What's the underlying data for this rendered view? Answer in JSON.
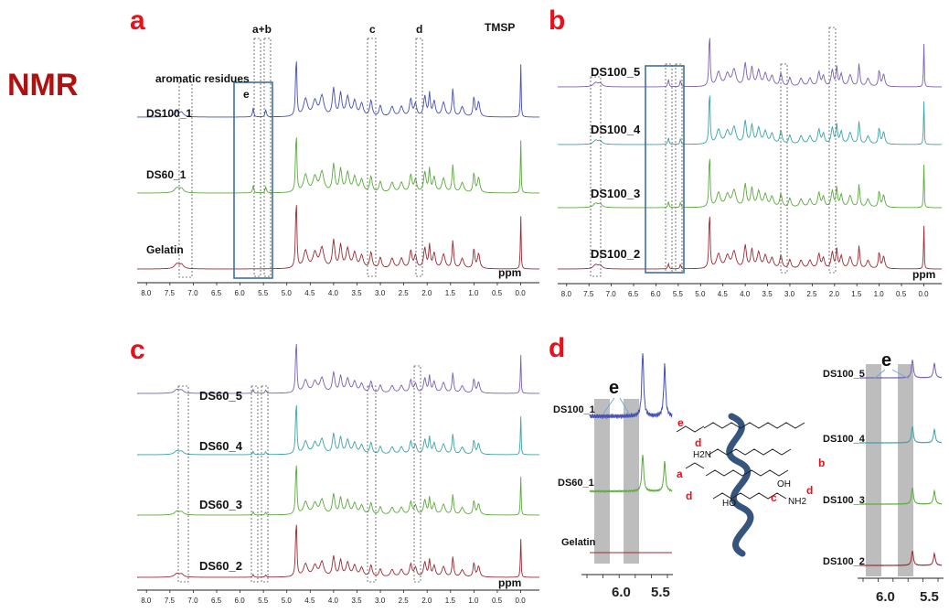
{
  "figure_title": "NMR",
  "colors": {
    "panel_letter": "#e8101a",
    "title": "#b01010",
    "purple": "#7b5fb3",
    "teal": "#3aa3a8",
    "green": "#5aaa3c",
    "red": "#9b2a33",
    "blue": "#4450b5",
    "box_blue": "#3d6fa3",
    "helix": "#35547e",
    "shade": "#bdbdbd"
  },
  "chart_data": [
    {
      "panel": "a",
      "type": "line",
      "xlabel": "ppm",
      "x_ticks": [
        "8.0",
        "7.5",
        "7.0",
        "6.5",
        "6.0",
        "5.5",
        "5.0",
        "4.5",
        "4.0",
        "3.5",
        "3.0",
        "2.5",
        "2.0",
        "1.5",
        "1.0",
        "0.5",
        "0.0"
      ],
      "xlim": [
        8.2,
        -0.4
      ],
      "series": [
        {
          "name": "DS100_1",
          "color": "blue"
        },
        {
          "name": "DS60_1",
          "color": "green"
        },
        {
          "name": "Gelatin",
          "color": "red"
        }
      ],
      "annotations": [
        "aromatic residues",
        "e",
        "a+b",
        "c",
        "d",
        "TMSP"
      ]
    },
    {
      "panel": "b",
      "type": "line",
      "xlabel": "ppm",
      "x_ticks": [
        "8.0",
        "7.5",
        "7.0",
        "6.5",
        "6.0",
        "5.5",
        "5.0",
        "4.5",
        "4.0",
        "3.5",
        "3.0",
        "2.5",
        "2.0",
        "1.5",
        "1.0",
        "0.5",
        "0.0"
      ],
      "xlim": [
        8.2,
        -0.4
      ],
      "series": [
        {
          "name": "DS100_5",
          "color": "purple"
        },
        {
          "name": "DS100_4",
          "color": "teal"
        },
        {
          "name": "DS100_3",
          "color": "green"
        },
        {
          "name": "DS100_2",
          "color": "red"
        }
      ]
    },
    {
      "panel": "c",
      "type": "line",
      "xlabel": "ppm",
      "x_ticks": [
        "8.0",
        "7.5",
        "7.0",
        "6.5",
        "6.0",
        "5.5",
        "5.0",
        "4.5",
        "4.0",
        "3.5",
        "3.0",
        "2.5",
        "2.0",
        "1.5",
        "1.0",
        "0.5",
        "0.0"
      ],
      "xlim": [
        8.2,
        -0.4
      ],
      "series": [
        {
          "name": "DS60_5",
          "color": "purple"
        },
        {
          "name": "DS60_4",
          "color": "teal"
        },
        {
          "name": "DS60_3",
          "color": "green"
        },
        {
          "name": "DS60_2",
          "color": "red"
        }
      ]
    },
    {
      "panel": "d",
      "type": "line",
      "x_ticks": [
        "6.0",
        "5.5"
      ],
      "left": {
        "series": [
          {
            "name": "DS100_1",
            "color": "blue"
          },
          {
            "name": "DS60_1",
            "color": "green"
          },
          {
            "name": "Gelatin",
            "color": "red"
          }
        ],
        "annotation": "e"
      },
      "right": {
        "series": [
          {
            "name": "DS100_5",
            "color": "purple"
          },
          {
            "name": "DS100_4",
            "color": "teal"
          },
          {
            "name": "DS100_3",
            "color": "green"
          },
          {
            "name": "DS100_2",
            "color": "red"
          }
        ],
        "annotation": "e"
      },
      "structure_labels": [
        "e",
        "d",
        "a",
        "d",
        "b",
        "d",
        "c",
        "H2N",
        "NH2",
        "HO",
        "OH"
      ]
    }
  ],
  "panels": {
    "a": {
      "letter": "a"
    },
    "b": {
      "letter": "b"
    },
    "c": {
      "letter": "c"
    },
    "d": {
      "letter": "d"
    }
  }
}
